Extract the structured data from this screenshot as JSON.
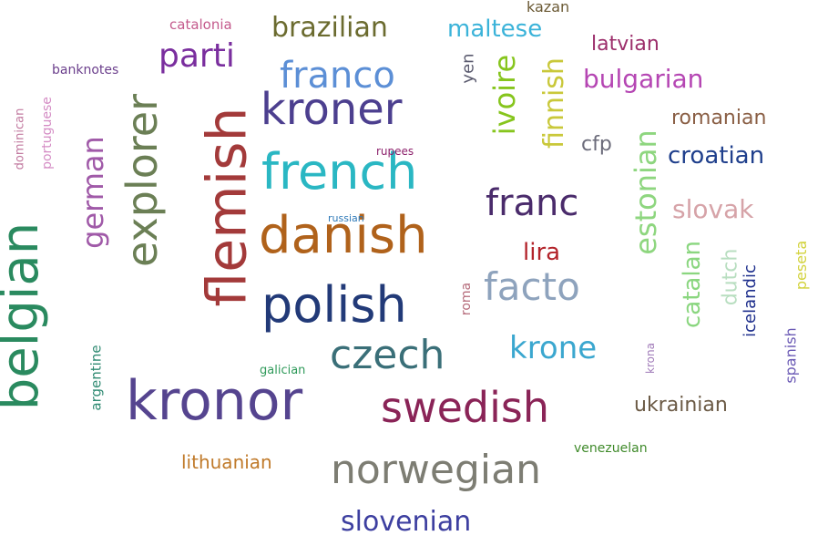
{
  "words": [
    {
      "text": "belgian",
      "color": "#2a8a5f"
    },
    {
      "text": "flemish",
      "color": "#a33a3a"
    },
    {
      "text": "kronor",
      "color": "#55448f"
    },
    {
      "text": "explorer",
      "color": "#6b7f55"
    },
    {
      "text": "danish",
      "color": "#b0621b"
    },
    {
      "text": "french",
      "color": "#2ab7c3"
    },
    {
      "text": "polish",
      "color": "#223a78"
    },
    {
      "text": "kroner",
      "color": "#4c3f8f"
    },
    {
      "text": "swedish",
      "color": "#8a2457"
    },
    {
      "text": "norwegian",
      "color": "#7d7d73"
    },
    {
      "text": "franco",
      "color": "#5c8fd6"
    },
    {
      "text": "czech",
      "color": "#3a6f78"
    },
    {
      "text": "franc",
      "color": "#4a2b6b"
    },
    {
      "text": "facto",
      "color": "#8ea3bd"
    },
    {
      "text": "german",
      "color": "#a05aa8"
    },
    {
      "text": "estonian",
      "color": "#8ed67f"
    },
    {
      "text": "slovenian",
      "color": "#3d3fa0"
    },
    {
      "text": "brazilian",
      "color": "#6b6b2f"
    },
    {
      "text": "krone",
      "color": "#3ba7cf"
    },
    {
      "text": "ivoire",
      "color": "#86c51d"
    },
    {
      "text": "finnish",
      "color": "#c9c83a"
    },
    {
      "text": "parti",
      "color": "#7a2e9e"
    },
    {
      "text": "maltese",
      "color": "#3bb3d9"
    },
    {
      "text": "bulgarian",
      "color": "#b546b3"
    },
    {
      "text": "croatian",
      "color": "#1f3f8c"
    },
    {
      "text": "slovak",
      "color": "#d6a3a8"
    },
    {
      "text": "catalan",
      "color": "#8ad67f"
    },
    {
      "text": "romanian",
      "color": "#8a5f45"
    },
    {
      "text": "ukrainian",
      "color": "#6b5a45"
    },
    {
      "text": "lithuanian",
      "color": "#c07a2a"
    },
    {
      "text": "latvian",
      "color": "#9c2e6b"
    },
    {
      "text": "lira",
      "color": "#b3232a"
    },
    {
      "text": "dutch",
      "color": "#b8dec0"
    },
    {
      "text": "cfp",
      "color": "#6b6b7a"
    },
    {
      "text": "icelandic",
      "color": "#1d2e8c"
    },
    {
      "text": "peseta",
      "color": "#d2d23a"
    },
    {
      "text": "spanish",
      "color": "#6b5ab5"
    },
    {
      "text": "yen",
      "color": "#5a5a6e"
    },
    {
      "text": "kazan",
      "color": "#6b5a35"
    },
    {
      "text": "argentine",
      "color": "#2f8a72"
    },
    {
      "text": "portuguese",
      "color": "#d48cc4"
    },
    {
      "text": "dominican",
      "color": "#c27aa0"
    },
    {
      "text": "catalonia",
      "color": "#c45a8c"
    },
    {
      "text": "banknotes",
      "color": "#6b3f8c"
    },
    {
      "text": "venezuelan",
      "color": "#3f8a2a"
    },
    {
      "text": "galician",
      "color": "#2f9a5a"
    },
    {
      "text": "roma",
      "color": "#b56a7a"
    },
    {
      "text": "krona",
      "color": "#a07ab8"
    },
    {
      "text": "rupees",
      "color": "#8c1f6b"
    },
    {
      "text": "russian",
      "color": "#2f7ab8"
    }
  ]
}
